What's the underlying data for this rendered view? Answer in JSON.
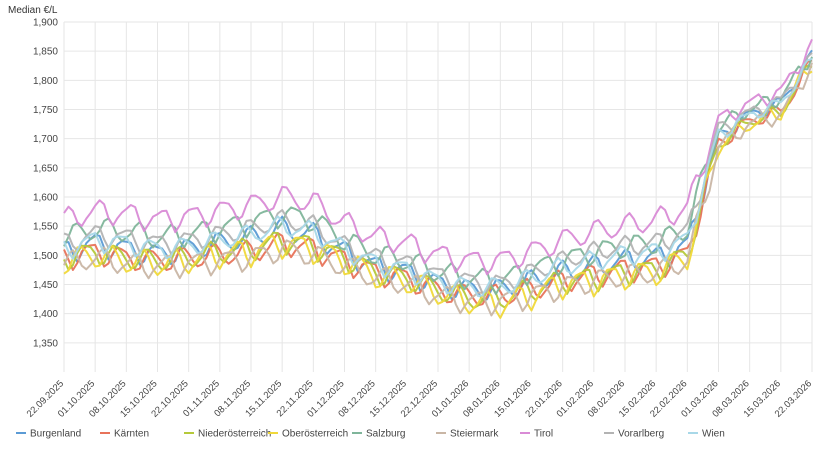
{
  "chart_data": {
    "type": "line",
    "ylabel": "Median €/L",
    "ylim": [
      1.3,
      1.9
    ],
    "yticks": [
      "1,350",
      "1,400",
      "1,450",
      "1,500",
      "1,550",
      "1,600",
      "1,650",
      "1,700",
      "1,750",
      "1,800",
      "1,850",
      "1,900"
    ],
    "xticks": [
      "22.09.2025",
      "01.10.2025",
      "08.10.2025",
      "15.10.2025",
      "22.10.2025",
      "01.11.2025",
      "08.11.2025",
      "15.11.2025",
      "22.11.2025",
      "01.12.2025",
      "08.12.2025",
      "15.12.2025",
      "22.12.2025",
      "01.01.2026",
      "08.01.2026",
      "15.01.2026",
      "22.01.2026",
      "01.02.2026",
      "08.02.2026",
      "15.02.2026",
      "22.02.2026",
      "01.03.2026",
      "08.03.2026",
      "15.03.2026",
      "22.03.2026"
    ],
    "date_range": [
      "22.09.2025",
      "24.03.2026"
    ],
    "series": [
      {
        "name": "Burgenland",
        "color": "#5b9bd5",
        "base": [
          1.505,
          1.52,
          1.51,
          1.5,
          1.51,
          1.52,
          1.53,
          1.545,
          1.535,
          1.505,
          1.48,
          1.47,
          1.45,
          1.44,
          1.44,
          1.455,
          1.47,
          1.48,
          1.49,
          1.495,
          1.515,
          1.7,
          1.74,
          1.76,
          1.84
        ],
        "amp": 0.035
      },
      {
        "name": "Kärnten",
        "color": "#e8735a",
        "base": [
          1.495,
          1.505,
          1.495,
          1.49,
          1.495,
          1.5,
          1.505,
          1.52,
          1.51,
          1.49,
          1.47,
          1.46,
          1.44,
          1.43,
          1.43,
          1.44,
          1.455,
          1.465,
          1.475,
          1.48,
          1.5,
          1.69,
          1.73,
          1.745,
          1.83
        ],
        "amp": 0.035
      },
      {
        "name": "Niederösterreich",
        "color": "#b5c93a",
        "base": [
          1.495,
          1.505,
          1.495,
          1.49,
          1.495,
          1.505,
          1.51,
          1.525,
          1.515,
          1.495,
          1.47,
          1.46,
          1.44,
          1.425,
          1.425,
          1.44,
          1.455,
          1.46,
          1.47,
          1.475,
          1.5,
          1.69,
          1.73,
          1.745,
          1.83
        ],
        "amp": 0.035
      },
      {
        "name": "Oberösterreich",
        "color": "#f0d83a",
        "base": [
          1.49,
          1.5,
          1.49,
          1.485,
          1.49,
          1.5,
          1.505,
          1.52,
          1.51,
          1.49,
          1.465,
          1.455,
          1.435,
          1.42,
          1.415,
          1.43,
          1.45,
          1.455,
          1.465,
          1.47,
          1.495,
          1.69,
          1.725,
          1.745,
          1.83
        ],
        "amp": 0.04
      },
      {
        "name": "Salzburg",
        "color": "#7fb59a",
        "base": [
          1.53,
          1.545,
          1.54,
          1.53,
          1.535,
          1.545,
          1.555,
          1.57,
          1.56,
          1.525,
          1.5,
          1.49,
          1.47,
          1.46,
          1.455,
          1.475,
          1.49,
          1.505,
          1.515,
          1.52,
          1.545,
          1.72,
          1.75,
          1.77,
          1.845
        ],
        "amp": 0.035
      },
      {
        "name": "Steiermark",
        "color": "#c9b6a5",
        "base": [
          1.485,
          1.495,
          1.485,
          1.48,
          1.485,
          1.49,
          1.495,
          1.51,
          1.5,
          1.48,
          1.46,
          1.45,
          1.43,
          1.42,
          1.42,
          1.43,
          1.445,
          1.455,
          1.465,
          1.47,
          1.49,
          1.685,
          1.725,
          1.74,
          1.825
        ],
        "amp": 0.035
      },
      {
        "name": "Tirol",
        "color": "#d98bd6",
        "base": [
          1.56,
          1.575,
          1.57,
          1.56,
          1.565,
          1.575,
          1.585,
          1.6,
          1.59,
          1.555,
          1.53,
          1.52,
          1.5,
          1.49,
          1.49,
          1.505,
          1.525,
          1.54,
          1.55,
          1.56,
          1.58,
          1.73,
          1.76,
          1.78,
          1.86
        ],
        "amp": 0.035
      },
      {
        "name": "Vorarlberg",
        "color": "#b3b3b3",
        "base": [
          1.52,
          1.535,
          1.53,
          1.52,
          1.525,
          1.535,
          1.545,
          1.56,
          1.55,
          1.515,
          1.495,
          1.485,
          1.465,
          1.455,
          1.45,
          1.47,
          1.49,
          1.505,
          1.515,
          1.52,
          1.54,
          1.715,
          1.745,
          1.765,
          1.84
        ],
        "amp": 0.03
      },
      {
        "name": "Wien",
        "color": "#a8d8e8",
        "base": [
          1.51,
          1.525,
          1.52,
          1.51,
          1.515,
          1.525,
          1.535,
          1.55,
          1.54,
          1.51,
          1.485,
          1.475,
          1.455,
          1.445,
          1.445,
          1.46,
          1.48,
          1.49,
          1.5,
          1.505,
          1.525,
          1.705,
          1.74,
          1.76,
          1.835
        ],
        "amp": 0.03
      }
    ]
  }
}
